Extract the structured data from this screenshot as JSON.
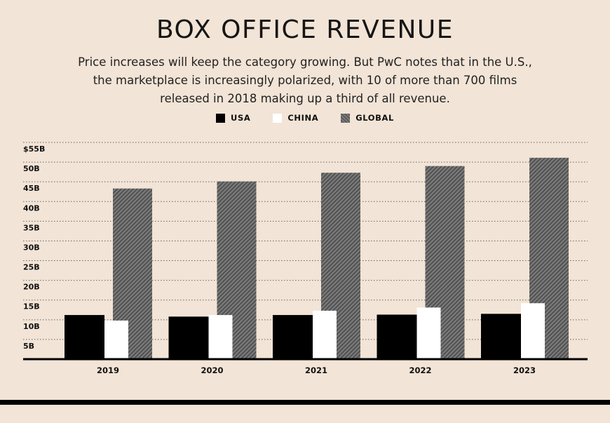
{
  "colors": {
    "background": "#f2e4d6",
    "usa": "#000000",
    "china": "#ffffff",
    "global": "#6b6b6b"
  },
  "chart_data": {
    "type": "bar",
    "title": "BOX OFFICE REVENUE",
    "subtitle": "Price increases will keep the category growing. But PwC notes that in the U.S., the marketplace is increasingly polarized, with 10 of more than 700 films released in 2018 making up a third of all revenue.",
    "xlabel": "",
    "ylabel": "",
    "categories": [
      "2019",
      "2020",
      "2021",
      "2022",
      "2023"
    ],
    "ylim": [
      0,
      55
    ],
    "yticks": [
      {
        "value": 5,
        "label": "5B"
      },
      {
        "value": 10,
        "label": "10B"
      },
      {
        "value": 15,
        "label": "15B"
      },
      {
        "value": 20,
        "label": "20B"
      },
      {
        "value": 25,
        "label": "25B"
      },
      {
        "value": 30,
        "label": "30B"
      },
      {
        "value": 35,
        "label": "35B"
      },
      {
        "value": 40,
        "label": "40B"
      },
      {
        "value": 45,
        "label": "45B"
      },
      {
        "value": 50,
        "label": "50B"
      },
      {
        "value": 55,
        "label": "$55B"
      }
    ],
    "grid": true,
    "legend_position": "top-center",
    "series": [
      {
        "name": "USA",
        "values": [
          11.2,
          10.8,
          11.2,
          11.3,
          11.5
        ]
      },
      {
        "name": "CHINA",
        "values": [
          9.8,
          11.2,
          12.3,
          13.1,
          14.2
        ]
      },
      {
        "name": "GLOBAL",
        "values": [
          43.3,
          45.1,
          47.3,
          49.0,
          51.1
        ]
      }
    ]
  }
}
